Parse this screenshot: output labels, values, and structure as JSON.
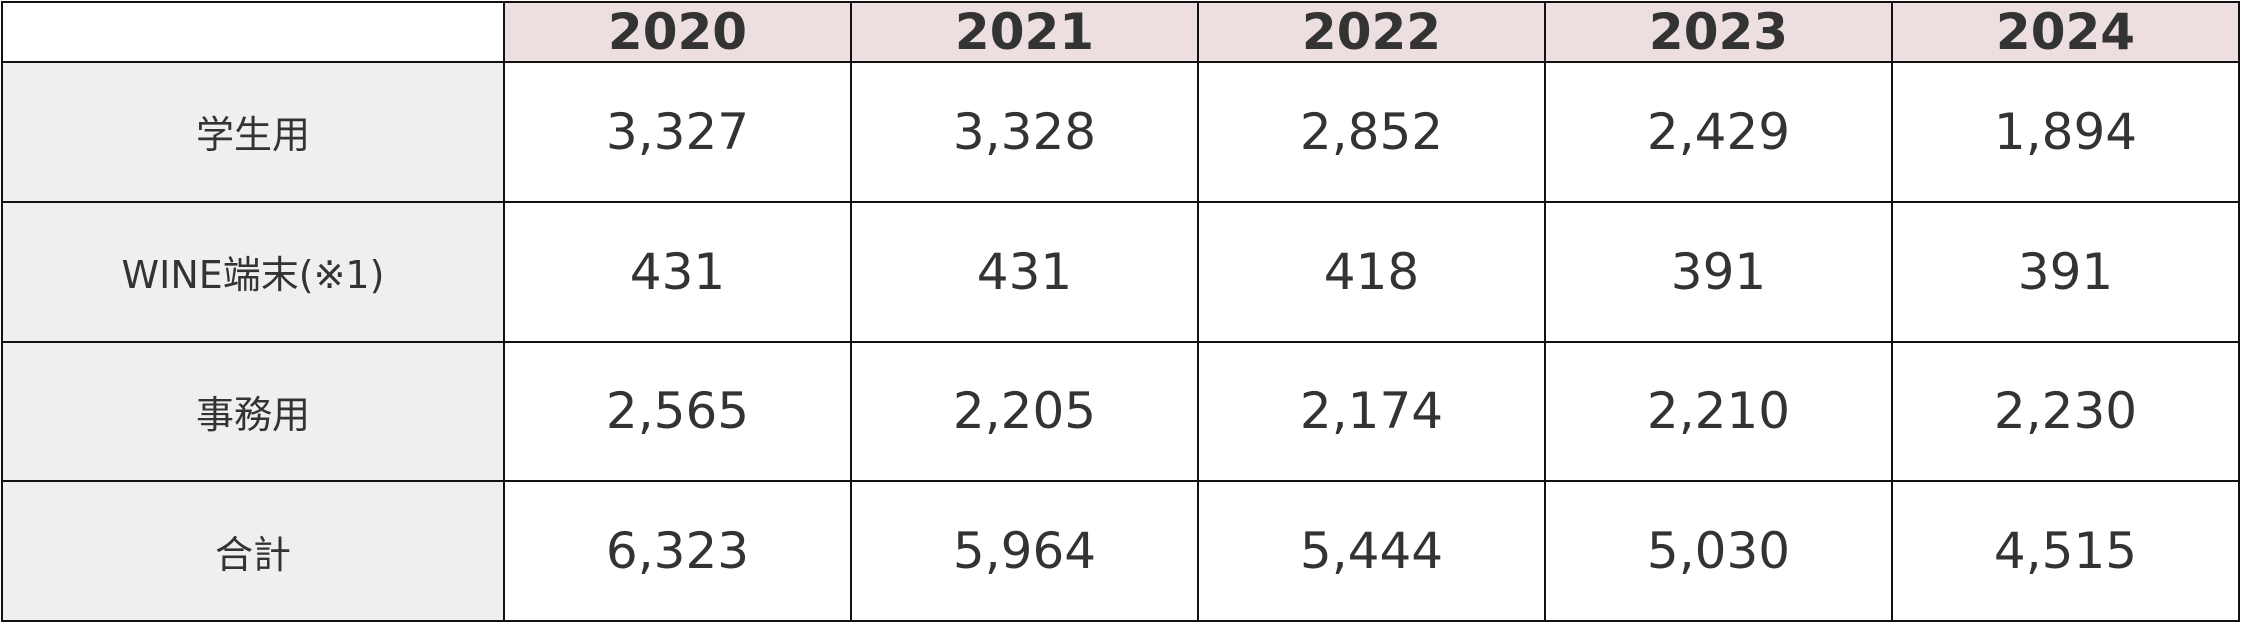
{
  "table": {
    "header": [
      "2020",
      "2021",
      "2022",
      "2023",
      "2024"
    ],
    "rows": [
      {
        "label": "学生用",
        "values": [
          "3,327",
          "3,328",
          "2,852",
          "2,429",
          "1,894"
        ]
      },
      {
        "label": "WINE端末(※1)",
        "values": [
          "431",
          "431",
          "418",
          "391",
          "391"
        ]
      },
      {
        "label": "事務用",
        "values": [
          "2,565",
          "2,205",
          "2,174",
          "2,210",
          "2,230"
        ]
      },
      {
        "label": "合計",
        "values": [
          "6,323",
          "5,964",
          "5,444",
          "5,030",
          "4,515"
        ]
      }
    ]
  }
}
